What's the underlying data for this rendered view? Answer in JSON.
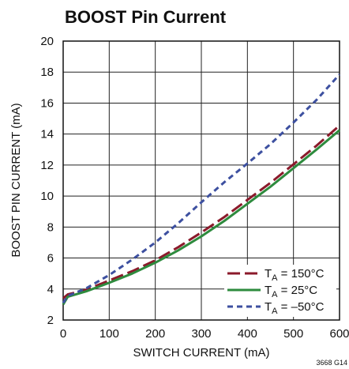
{
  "chart_data": {
    "type": "line",
    "title": "BOOST Pin Current",
    "xlabel": "SWITCH CURRENT (mA)",
    "ylabel": "BOOST PIN CURRENT (mA)",
    "xlim": [
      0,
      600
    ],
    "ylim": [
      2,
      20
    ],
    "x_ticks": [
      0,
      100,
      200,
      300,
      400,
      500,
      600
    ],
    "y_ticks": [
      2,
      4,
      6,
      8,
      10,
      12,
      14,
      16,
      18,
      20
    ],
    "grid": true,
    "legend_position": "bottom-right",
    "figure_id": "3668 G14",
    "series": [
      {
        "name_prefix": "T",
        "name_sub": "A",
        "name_suffix": " = 150°C",
        "color": "#8b1a2b",
        "style": "long-dash",
        "points": [
          [
            0,
            3.4
          ],
          [
            10,
            3.65
          ],
          [
            50,
            3.95
          ],
          [
            100,
            4.55
          ],
          [
            150,
            5.15
          ],
          [
            200,
            5.85
          ],
          [
            250,
            6.7
          ],
          [
            300,
            7.65
          ],
          [
            350,
            8.65
          ],
          [
            400,
            9.75
          ],
          [
            450,
            10.85
          ],
          [
            500,
            12.05
          ],
          [
            550,
            13.25
          ],
          [
            600,
            14.55
          ]
        ]
      },
      {
        "name_prefix": "T",
        "name_sub": "A",
        "name_suffix": " = 25°C",
        "color": "#2e8b3e",
        "style": "solid",
        "points": [
          [
            0,
            3.0
          ],
          [
            10,
            3.5
          ],
          [
            50,
            3.85
          ],
          [
            100,
            4.4
          ],
          [
            150,
            5.0
          ],
          [
            200,
            5.7
          ],
          [
            250,
            6.5
          ],
          [
            300,
            7.4
          ],
          [
            350,
            8.4
          ],
          [
            400,
            9.5
          ],
          [
            450,
            10.6
          ],
          [
            500,
            11.8
          ],
          [
            550,
            13.0
          ],
          [
            600,
            14.25
          ]
        ]
      },
      {
        "name_prefix": "T",
        "name_sub": "A",
        "name_suffix": " = –50°C",
        "color": "#3d50a0",
        "style": "short-dash",
        "points": [
          [
            0,
            3.1
          ],
          [
            10,
            3.55
          ],
          [
            50,
            4.05
          ],
          [
            100,
            4.9
          ],
          [
            150,
            5.9
          ],
          [
            200,
            7.0
          ],
          [
            250,
            8.25
          ],
          [
            300,
            9.6
          ],
          [
            350,
            10.9
          ],
          [
            400,
            12.1
          ],
          [
            450,
            13.35
          ],
          [
            500,
            14.75
          ],
          [
            550,
            16.2
          ],
          [
            600,
            17.85
          ]
        ]
      }
    ]
  }
}
